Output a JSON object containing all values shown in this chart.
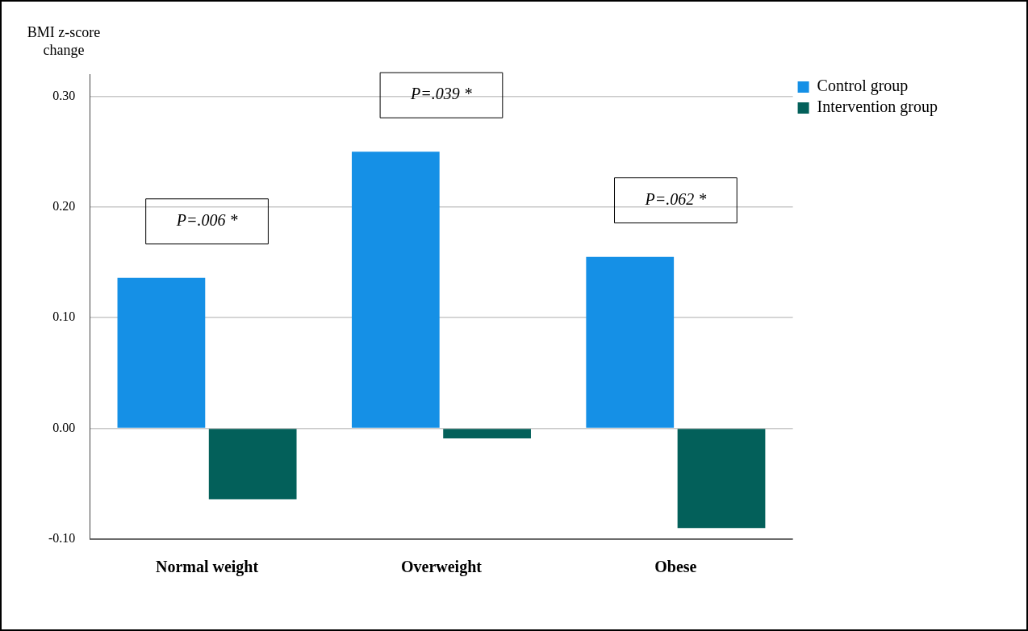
{
  "chart_data": {
    "type": "bar",
    "ylabel": "BMI z-score change",
    "categories": [
      "Normal weight",
      "Overweight",
      "Obese"
    ],
    "series": [
      {
        "name": "Control group",
        "color": "#1590e6",
        "values": [
          0.136,
          0.25,
          0.155
        ]
      },
      {
        "name": "Intervention group",
        "color": "#03605a",
        "values": [
          -0.064,
          -0.009,
          -0.09
        ]
      }
    ],
    "ylim": [
      -0.1,
      0.32
    ],
    "yticks": [
      {
        "value": -0.1,
        "label": "-0.10"
      },
      {
        "value": 0,
        "label": "0.00"
      },
      {
        "value": 0.1,
        "label": "0.10"
      },
      {
        "value": 0.2,
        "label": "0.20"
      },
      {
        "value": 0.3,
        "label": "0.30"
      }
    ],
    "grid": "y",
    "legend": "top right",
    "annotations": [
      "P=.006 *",
      "P=.039 *",
      "P=.062 *"
    ]
  }
}
